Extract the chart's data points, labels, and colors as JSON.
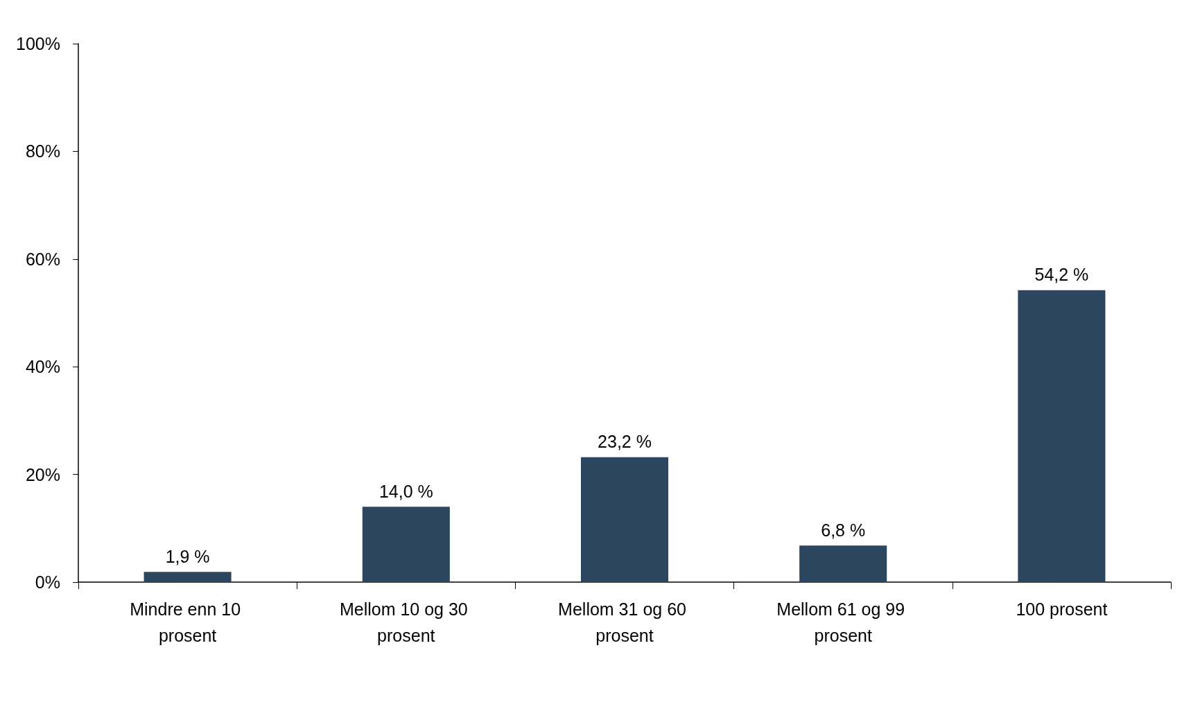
{
  "chart_data": {
    "type": "bar",
    "categories": [
      "Mindre enn 10 prosent",
      "Mellom 10 og 30 prosent",
      "Mellom 31 og 60 prosent",
      "Mellom 61 og 99 prosent",
      "100 prosent"
    ],
    "values": [
      1.9,
      14.0,
      23.2,
      6.8,
      54.2
    ],
    "value_labels": [
      "1,9 %",
      "14,0 %",
      "23,2 %",
      "6,8 %",
      "54,2 %"
    ],
    "color": "#2d4660",
    "ylim": [
      0,
      100
    ],
    "yticks": [
      {
        "value": 0,
        "label": "0%"
      },
      {
        "value": 20,
        "label": "20%"
      },
      {
        "value": 40,
        "label": "40%"
      },
      {
        "value": 60,
        "label": "60%"
      },
      {
        "value": 80,
        "label": "80%"
      },
      {
        "value": 100,
        "label": "100%"
      }
    ],
    "grid": false
  }
}
